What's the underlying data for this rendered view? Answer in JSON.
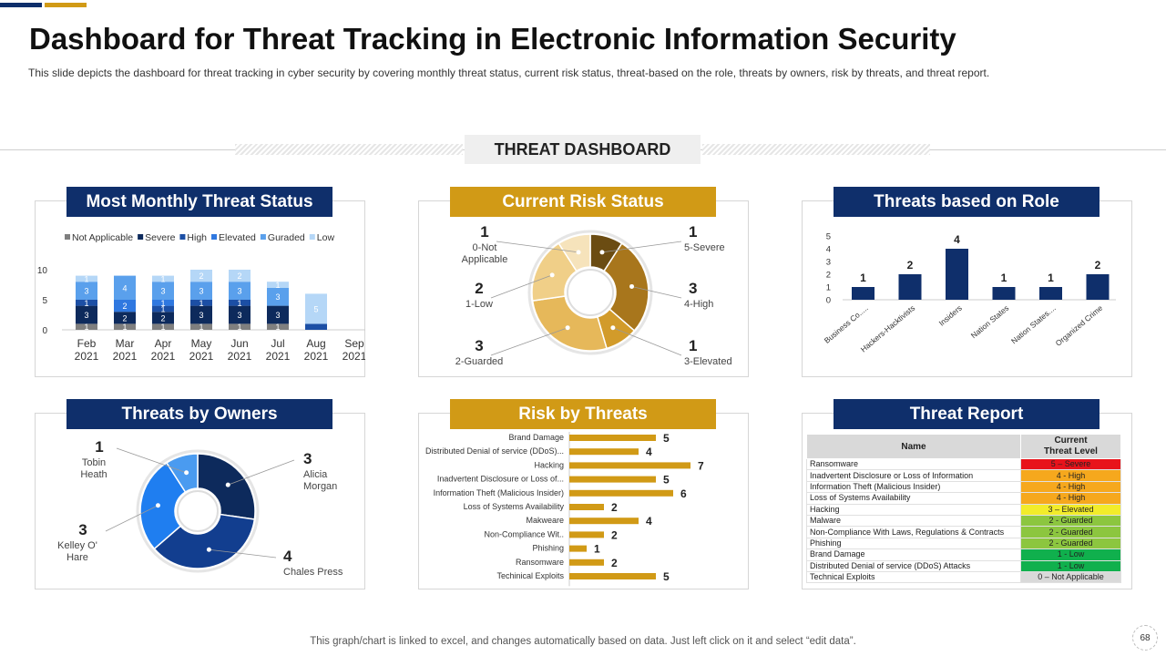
{
  "title": "Dashboard for Threat Tracking in Electronic Information Security",
  "subtitle": "This slide depicts the dashboard  for threat tracking in cyber security by covering  monthly threat status, current risk status, threat-based  on the role, threats by owners,  risk by threats, and threat report.",
  "dashboard_label": "THREAT DASHBOARD",
  "panels": {
    "monthly": "Most Monthly Threat Status",
    "risk": "Current Risk Status",
    "role": "Threats based on Role",
    "owners": "Threats by Owners",
    "risk_by_threats": "Risk by Threats",
    "report": "Threat Report"
  },
  "footer": "This graph/chart is linked to excel,  and changes automatically based on data. Just left click on it and select “edit data”.",
  "page_number": "68",
  "colors": {
    "navy": "#0f2f6b",
    "gold": "#d19a16"
  },
  "chart_data": [
    {
      "id": "monthly",
      "type": "bar",
      "stacked": true,
      "categories": [
        "Feb\n2021",
        "Mar\n2021",
        "Apr\n2021",
        "May\n2021",
        "Jun\n2021",
        "Jul\n2021",
        "Aug\n2021",
        "Sep\n2021"
      ],
      "series": [
        {
          "name": "Not Applicable",
          "color": "#7f7f7f",
          "values": [
            1,
            1,
            1,
            1,
            1,
            1,
            0,
            0
          ]
        },
        {
          "name": "Severe",
          "color": "#0d2a5c",
          "values": [
            3,
            2,
            2,
            3,
            3,
            3,
            0,
            0
          ]
        },
        {
          "name": "High",
          "color": "#1c4fa5",
          "values": [
            1,
            0,
            1,
            1,
            1,
            0,
            1,
            0
          ]
        },
        {
          "name": "Elevated",
          "color": "#2f78e0",
          "values": [
            0,
            2,
            1,
            0,
            0,
            0,
            0,
            0
          ]
        },
        {
          "name": "Guraded",
          "color": "#5aa0ec",
          "values": [
            3,
            4,
            3,
            3,
            3,
            3,
            0,
            0
          ]
        },
        {
          "name": "Low",
          "color": "#b5d7f7",
          "values": [
            1,
            0,
            1,
            2,
            2,
            1,
            5,
            0
          ]
        }
      ],
      "labels": [
        [
          "1",
          "3",
          "1",
          "",
          "3",
          "1"
        ],
        [
          "1",
          "2",
          "",
          "2",
          "4",
          ""
        ],
        [
          "1",
          "2",
          "1",
          "1",
          "3",
          "1"
        ],
        [
          "1",
          "3",
          "1",
          "",
          "3",
          "2"
        ],
        [
          "1",
          "3",
          "1",
          "",
          "3",
          "2"
        ],
        [
          "1",
          "3",
          "",
          "",
          "3",
          "1"
        ],
        [
          "",
          "",
          "",
          "",
          "",
          "5"
        ],
        [
          "",
          "",
          "",
          "",
          "",
          ""
        ]
      ],
      "ylim": [
        0,
        10
      ],
      "yticks": [
        "0",
        "5",
        "10"
      ]
    },
    {
      "id": "risk",
      "type": "pie",
      "donut": true,
      "slices": [
        {
          "name": "5-Severe",
          "value": 1,
          "color": "#6b4c12"
        },
        {
          "name": "4-High",
          "value": 3,
          "color": "#a8761c"
        },
        {
          "name": "3-Elevated",
          "value": 1,
          "color": "#d29b2a"
        },
        {
          "name": "2-Guarded",
          "value": 3,
          "color": "#e6b85a"
        },
        {
          "name": "1-Low",
          "value": 2,
          "color": "#f0cf88"
        },
        {
          "name": "0-Not Applicable",
          "value": 1,
          "color": "#f6e3bb"
        }
      ]
    },
    {
      "id": "role",
      "type": "bar",
      "categories": [
        "Business Co.....",
        "Hackers-Hacktivists",
        "Insiders",
        "Nation States",
        "Nation States....",
        "Organized Crime"
      ],
      "values": [
        1,
        2,
        4,
        1,
        1,
        2
      ],
      "ylim": [
        0,
        5
      ],
      "yticks": [
        "0",
        "1",
        "2",
        "3",
        "4",
        "5"
      ],
      "color": "#0f2f6b"
    },
    {
      "id": "owners",
      "type": "pie",
      "donut": true,
      "slices": [
        {
          "name": "Alicia Morgan",
          "value": 3,
          "color": "#0d2a5c"
        },
        {
          "name": "Chales Press",
          "value": 4,
          "color": "#123e8f"
        },
        {
          "name": "Kelley O' Hare",
          "value": 3,
          "color": "#1f7ef0"
        },
        {
          "name": "Tobin Heath",
          "value": 1,
          "color": "#4a9bf0"
        }
      ]
    },
    {
      "id": "risk_by_threats",
      "type": "bar",
      "orientation": "horizontal",
      "categories": [
        "Brand Damage",
        "Distributed Denial of service (DDoS)...",
        "Hacking",
        "Inadvertent Disclosure or Loss of...",
        "Information Theft (Malicious Insider)",
        "Loss of Systems Availability",
        "Makweare",
        "Non-Compliance Wit..",
        "Phishing",
        "Ransomware",
        "Techinical Exploits"
      ],
      "values": [
        5,
        4,
        7,
        5,
        6,
        2,
        4,
        2,
        1,
        2,
        5
      ],
      "xlim": [
        0,
        8
      ],
      "color": "#d19a16"
    },
    {
      "id": "report",
      "type": "table",
      "headers": [
        "Name",
        "Current\nThreat Level"
      ],
      "rows": [
        {
          "name": "Ransomware",
          "level": "5 – Severe",
          "color": "#e8131b"
        },
        {
          "name": "Inadvertent Disclosure or Loss of Information",
          "level": "4 - High",
          "color": "#f6a81d"
        },
        {
          "name": "Information Theft (Malicious Insider)",
          "level": "4 - High",
          "color": "#f6a81d"
        },
        {
          "name": "Loss of Systems Availability",
          "level": "4 - High",
          "color": "#f6a81d"
        },
        {
          "name": "Hacking",
          "level": "3 – Elevated",
          "color": "#f2ec2a"
        },
        {
          "name": "Malware",
          "level": "2 - Guarded",
          "color": "#8cc63f"
        },
        {
          "name": "Non-Compliance With Laws, Regulations & Contracts",
          "level": "2 - Guarded",
          "color": "#8cc63f"
        },
        {
          "name": "Phishing",
          "level": "2 - Guarded",
          "color": "#8cc63f"
        },
        {
          "name": "Brand Damage",
          "level": "1 - Low",
          "color": "#10b04d"
        },
        {
          "name": "Distributed Denial of service (DDoS) Attacks",
          "level": "1 - Low",
          "color": "#10b04d"
        },
        {
          "name": "Technical Exploits",
          "level": "0 – Not Applicable",
          "color": "#d9d9d9"
        }
      ]
    }
  ]
}
